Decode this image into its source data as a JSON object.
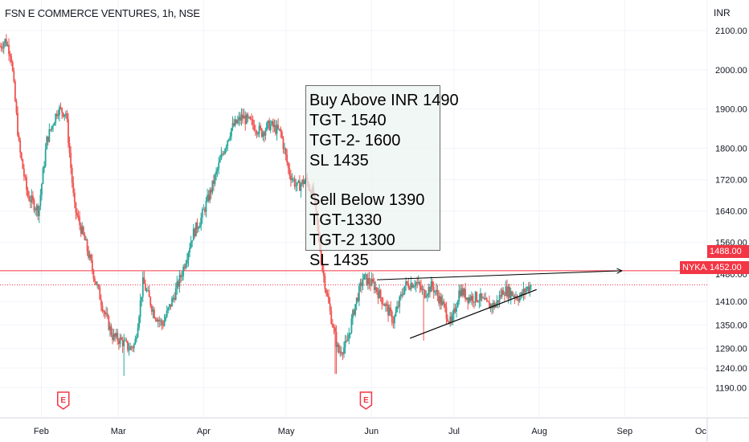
{
  "chart_data": {
    "type": "candlestick",
    "title": "FSN E COMMERCE VENTURES, 1h, NSE",
    "currency": "INR",
    "y_ticks": [
      2100,
      2000,
      1900,
      1800,
      1720,
      1640,
      1560,
      1480,
      1410,
      1350,
      1290,
      1240,
      1190
    ],
    "ylim": [
      1160,
      2150
    ],
    "x_ticks": [
      "Feb",
      "Mar",
      "Apr",
      "May",
      "Jun",
      "Jul",
      "Aug",
      "Sep",
      "Oc"
    ],
    "x_range": [
      "2022-01-17",
      "2022-10-01"
    ],
    "grid": true,
    "colors": {
      "up": "#26a69a",
      "down": "#ef5350",
      "accent": "#f23645",
      "trend": "#000000"
    },
    "price_path": [
      [
        "2022-01-17",
        2060
      ],
      [
        "2022-01-19",
        2075
      ],
      [
        "2022-01-21",
        2040
      ],
      [
        "2022-01-24",
        1800
      ],
      [
        "2022-01-27",
        1680
      ],
      [
        "2022-01-31",
        1640
      ],
      [
        "2022-02-03",
        1820
      ],
      [
        "2022-02-07",
        1900
      ],
      [
        "2022-02-10",
        1890
      ],
      [
        "2022-02-13",
        1650
      ],
      [
        "2022-02-17",
        1560
      ],
      [
        "2022-02-20",
        1480
      ],
      [
        "2022-02-24",
        1380
      ],
      [
        "2022-02-27",
        1320
      ],
      [
        "2022-03-02",
        1310
      ],
      [
        "2022-03-05",
        1290
      ],
      [
        "2022-03-07",
        1300
      ],
      [
        "2022-03-10",
        1460
      ],
      [
        "2022-03-14",
        1380
      ],
      [
        "2022-03-17",
        1350
      ],
      [
        "2022-03-21",
        1420
      ],
      [
        "2022-03-24",
        1480
      ],
      [
        "2022-03-28",
        1580
      ],
      [
        "2022-03-31",
        1620
      ],
      [
        "2022-04-04",
        1700
      ],
      [
        "2022-04-08",
        1790
      ],
      [
        "2022-04-11",
        1850
      ],
      [
        "2022-04-15",
        1880
      ],
      [
        "2022-04-19",
        1860
      ],
      [
        "2022-04-22",
        1840
      ],
      [
        "2022-04-25",
        1860
      ],
      [
        "2022-04-29",
        1840
      ],
      [
        "2022-05-02",
        1740
      ],
      [
        "2022-05-05",
        1700
      ],
      [
        "2022-05-08",
        1720
      ],
      [
        "2022-05-11",
        1680
      ],
      [
        "2022-05-14",
        1500
      ],
      [
        "2022-05-17",
        1380
      ],
      [
        "2022-05-20",
        1280
      ],
      [
        "2022-05-23",
        1300
      ],
      [
        "2022-05-26",
        1400
      ],
      [
        "2022-05-29",
        1470
      ],
      [
        "2022-06-02",
        1450
      ],
      [
        "2022-06-06",
        1400
      ],
      [
        "2022-06-09",
        1360
      ],
      [
        "2022-06-13",
        1450
      ],
      [
        "2022-06-17",
        1460
      ],
      [
        "2022-06-20",
        1430
      ],
      [
        "2022-06-23",
        1450
      ],
      [
        "2022-06-27",
        1400
      ],
      [
        "2022-06-30",
        1350
      ],
      [
        "2022-07-03",
        1440
      ],
      [
        "2022-07-06",
        1420
      ],
      [
        "2022-07-10",
        1420
      ],
      [
        "2022-07-13",
        1400
      ],
      [
        "2022-07-16",
        1400
      ],
      [
        "2022-07-19",
        1440
      ],
      [
        "2022-07-22",
        1430
      ],
      [
        "2022-07-25",
        1420
      ],
      [
        "2022-07-27",
        1440
      ],
      [
        "2022-07-29",
        1452
      ]
    ],
    "notable_lows": [
      [
        "2022-03-03",
        1220
      ],
      [
        "2022-05-19",
        1225
      ],
      [
        "2022-06-20",
        1310
      ]
    ],
    "price_levels": [
      {
        "label": "1488.00",
        "value": 1488,
        "style": "solid"
      },
      {
        "label": "1452.00",
        "value": 1452,
        "style": "dotted",
        "symbol": "NYKAA"
      }
    ],
    "trendline": {
      "from": [
        "2022-06-15",
        1316
      ],
      "to": [
        "2022-07-31",
        1440
      ]
    },
    "arrow": {
      "from": [
        "2022-06-03",
        1465
      ],
      "to": [
        "2022-08-31",
        1488
      ]
    },
    "earnings_marks": [
      "2022-02-09",
      "2022-05-30"
    ],
    "earnings_mark_label": "E",
    "annotation": {
      "lines": [
        "Buy Above INR 1490",
        "TGT- 1540",
        "TGT-2- 1600",
        "SL 1435",
        "",
        "Sell Below 1390",
        "TGT-1330",
        "TGT-2 1300",
        "SL 1435"
      ]
    }
  }
}
